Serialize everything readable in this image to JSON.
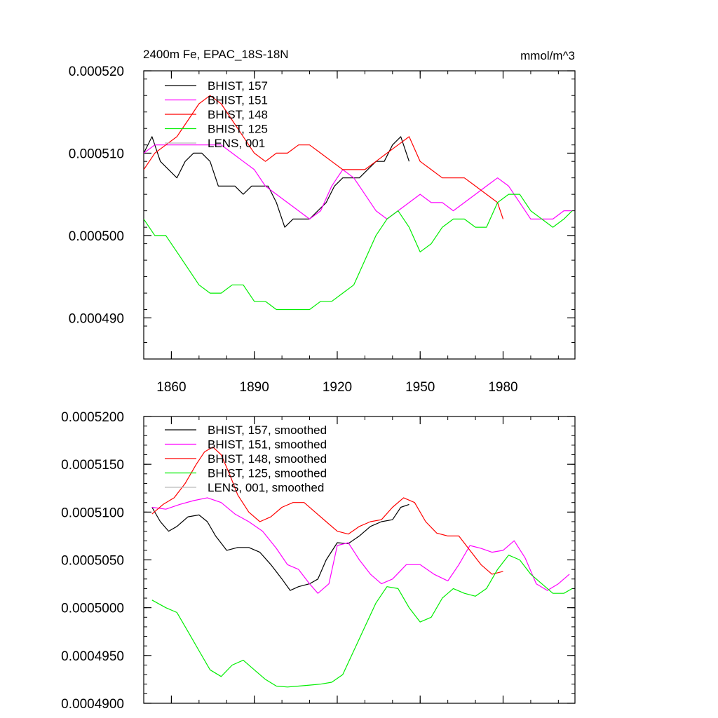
{
  "chart_data": [
    {
      "type": "line",
      "title": "2400m Fe, EPAC_18S-18N",
      "units": "mmol/m^3",
      "xlabel": "",
      "ylabel": "",
      "xlim": [
        1850,
        2006
      ],
      "ylim": [
        0.000485,
        0.00052
      ],
      "xticks": [
        1860,
        1890,
        1920,
        1950,
        1980
      ],
      "xtick_labels": [
        "1860",
        "1890",
        "1920",
        "1950",
        "1980"
      ],
      "yticks": [
        0.00049,
        0.0005,
        0.00051,
        0.00052
      ],
      "ytick_labels": [
        "0.000490",
        "0.000500",
        "0.000510",
        "0.000520"
      ],
      "legend_position": "top-left",
      "series": [
        {
          "name": "BHIST, 157",
          "color": "#000000",
          "x": [
            1850,
            1853,
            1856,
            1859,
            1862,
            1865,
            1868,
            1871,
            1874,
            1877,
            1880,
            1883,
            1886,
            1889,
            1892,
            1895,
            1898,
            1901,
            1904,
            1907,
            1910,
            1913,
            1916,
            1919,
            1922,
            1925,
            1928,
            1931,
            1934,
            1937,
            1940,
            1943,
            1946
          ],
          "y": [
            0.00051,
            0.000512,
            0.000509,
            0.000508,
            0.000507,
            0.000509,
            0.00051,
            0.00051,
            0.000509,
            0.000506,
            0.000506,
            0.000506,
            0.000505,
            0.000506,
            0.000506,
            0.000506,
            0.000504,
            0.000501,
            0.000502,
            0.000502,
            0.000502,
            0.000503,
            0.000504,
            0.000506,
            0.000507,
            0.000507,
            0.000507,
            0.000508,
            0.000509,
            0.000509,
            0.000511,
            0.000512,
            0.000509
          ]
        },
        {
          "name": "BHIST, 151",
          "color": "#ff00ff",
          "x": [
            1850,
            1854,
            1858,
            1862,
            1866,
            1870,
            1874,
            1878,
            1882,
            1886,
            1890,
            1894,
            1898,
            1902,
            1906,
            1910,
            1914,
            1918,
            1922,
            1926,
            1930,
            1934,
            1938,
            1942,
            1946,
            1950,
            1954,
            1958,
            1962,
            1966,
            1970,
            1974,
            1978,
            1982,
            1986,
            1990,
            1994,
            1998,
            2002,
            2005
          ],
          "y": [
            0.00051,
            0.000511,
            0.000511,
            0.000511,
            0.000511,
            0.000511,
            0.000511,
            0.000511,
            0.00051,
            0.000509,
            0.000508,
            0.000506,
            0.000505,
            0.000504,
            0.000503,
            0.000502,
            0.000503,
            0.000506,
            0.000508,
            0.000507,
            0.000505,
            0.000503,
            0.000502,
            0.000503,
            0.000504,
            0.000505,
            0.000504,
            0.000504,
            0.000503,
            0.000504,
            0.000505,
            0.000506,
            0.000507,
            0.000506,
            0.000504,
            0.000502,
            0.000502,
            0.000502,
            0.000503,
            0.000503
          ]
        },
        {
          "name": "BHIST, 148",
          "color": "#ff0000",
          "x": [
            1850,
            1854,
            1858,
            1862,
            1866,
            1870,
            1874,
            1878,
            1882,
            1886,
            1890,
            1894,
            1898,
            1902,
            1906,
            1910,
            1914,
            1918,
            1922,
            1926,
            1930,
            1934,
            1938,
            1942,
            1946,
            1950,
            1954,
            1958,
            1962,
            1966,
            1970,
            1974,
            1978,
            1980
          ],
          "y": [
            0.000508,
            0.00051,
            0.000511,
            0.000512,
            0.000514,
            0.000516,
            0.000517,
            0.000516,
            0.000514,
            0.000512,
            0.00051,
            0.000509,
            0.00051,
            0.00051,
            0.000511,
            0.000511,
            0.00051,
            0.000509,
            0.000508,
            0.000508,
            0.000508,
            0.000509,
            0.00051,
            0.000511,
            0.000512,
            0.000509,
            0.000508,
            0.000507,
            0.000507,
            0.000507,
            0.000506,
            0.000505,
            0.000504,
            0.000502
          ]
        },
        {
          "name": "BHIST, 125",
          "color": "#00ee00",
          "x": [
            1850,
            1854,
            1858,
            1862,
            1866,
            1870,
            1874,
            1878,
            1882,
            1886,
            1890,
            1894,
            1898,
            1902,
            1906,
            1910,
            1914,
            1918,
            1922,
            1926,
            1930,
            1934,
            1938,
            1942,
            1946,
            1950,
            1954,
            1958,
            1962,
            1966,
            1970,
            1974,
            1978,
            1982,
            1986,
            1990,
            1994,
            1998,
            2002,
            2005
          ],
          "y": [
            0.000502,
            0.0005,
            0.0005,
            0.000498,
            0.000496,
            0.000494,
            0.000493,
            0.000493,
            0.000494,
            0.000494,
            0.000492,
            0.000492,
            0.000491,
            0.000491,
            0.000491,
            0.000491,
            0.000492,
            0.000492,
            0.000493,
            0.000494,
            0.000497,
            0.0005,
            0.000502,
            0.000503,
            0.000501,
            0.000498,
            0.000499,
            0.000501,
            0.000502,
            0.000502,
            0.000501,
            0.000501,
            0.000504,
            0.000505,
            0.000505,
            0.000503,
            0.000502,
            0.000501,
            0.000502,
            0.000503
          ]
        },
        {
          "name": "LENS, 001",
          "color": "#bbbbbb",
          "x": [],
          "y": []
        }
      ]
    },
    {
      "type": "line",
      "title": "",
      "xlabel": "",
      "ylabel": "",
      "xlim": [
        1850,
        2006
      ],
      "ylim": [
        0.00049,
        0.00052
      ],
      "xticks": [
        1860,
        1890,
        1920,
        1950,
        1980
      ],
      "yticks": [
        0.00049,
        0.000495,
        0.0005,
        0.000505,
        0.00051,
        0.000515,
        0.00052
      ],
      "ytick_labels": [
        "0.0004900",
        "0.0004950",
        "0.0005000",
        "0.0005050",
        "0.0005100",
        "0.0005150",
        "0.0005200"
      ],
      "legend_position": "top-left",
      "series": [
        {
          "name": "BHIST, 157, smoothed",
          "color": "#000000",
          "x": [
            1853,
            1856,
            1859,
            1862,
            1866,
            1870,
            1873,
            1876,
            1880,
            1884,
            1888,
            1892,
            1896,
            1900,
            1903,
            1906,
            1910,
            1913,
            1916,
            1920,
            1924,
            1928,
            1932,
            1936,
            1940,
            1943,
            1946
          ],
          "y": [
            0.0005105,
            0.000509,
            0.000508,
            0.0005085,
            0.0005095,
            0.0005097,
            0.000509,
            0.0005075,
            0.000506,
            0.0005063,
            0.0005063,
            0.0005058,
            0.0005045,
            0.000503,
            0.0005018,
            0.0005022,
            0.0005025,
            0.000503,
            0.000505,
            0.0005068,
            0.0005067,
            0.0005075,
            0.0005085,
            0.000509,
            0.0005092,
            0.0005105,
            0.0005108
          ]
        },
        {
          "name": "BHIST, 151, smoothed",
          "color": "#ff00ff",
          "x": [
            1853,
            1858,
            1863,
            1868,
            1873,
            1878,
            1883,
            1888,
            1893,
            1898,
            1902,
            1906,
            1910,
            1913,
            1917,
            1920,
            1924,
            1928,
            1932,
            1936,
            1940,
            1945,
            1950,
            1955,
            1960,
            1964,
            1968,
            1972,
            1976,
            1980,
            1984,
            1988,
            1992,
            1996,
            2000,
            2004
          ],
          "y": [
            0.0005105,
            0.0005103,
            0.0005108,
            0.0005112,
            0.0005115,
            0.000511,
            0.0005098,
            0.000509,
            0.000508,
            0.0005062,
            0.0005045,
            0.000504,
            0.0005025,
            0.0005015,
            0.0005025,
            0.0005065,
            0.0005068,
            0.000505,
            0.0005035,
            0.0005025,
            0.000503,
            0.0005045,
            0.0005045,
            0.0005035,
            0.0005028,
            0.0005045,
            0.0005065,
            0.0005062,
            0.0005058,
            0.000506,
            0.000507,
            0.0005052,
            0.0005025,
            0.0005018,
            0.0005025,
            0.0005035
          ]
        },
        {
          "name": "BHIST, 148, smoothed",
          "color": "#ff0000",
          "x": [
            1853,
            1857,
            1861,
            1865,
            1869,
            1872,
            1875,
            1878,
            1881,
            1884,
            1888,
            1892,
            1896,
            1900,
            1904,
            1908,
            1912,
            1916,
            1920,
            1924,
            1928,
            1932,
            1936,
            1940,
            1944,
            1948,
            1952,
            1956,
            1960,
            1964,
            1968,
            1972,
            1976,
            1980
          ],
          "y": [
            0.0005098,
            0.0005108,
            0.0005115,
            0.000513,
            0.000515,
            0.0005163,
            0.0005168,
            0.000516,
            0.000514,
            0.0005118,
            0.00051,
            0.000509,
            0.0005095,
            0.0005105,
            0.000511,
            0.000511,
            0.00051,
            0.000509,
            0.000508,
            0.0005077,
            0.0005085,
            0.000509,
            0.0005092,
            0.0005105,
            0.0005115,
            0.000511,
            0.000509,
            0.0005078,
            0.0005075,
            0.0005075,
            0.000506,
            0.0005045,
            0.0005035,
            0.0005038
          ]
        },
        {
          "name": "BHIST, 125, smoothed",
          "color": "#00ee00",
          "x": [
            1853,
            1858,
            1862,
            1866,
            1870,
            1874,
            1878,
            1882,
            1886,
            1890,
            1894,
            1898,
            1902,
            1906,
            1910,
            1914,
            1918,
            1922,
            1926,
            1930,
            1934,
            1938,
            1942,
            1946,
            1950,
            1954,
            1958,
            1962,
            1966,
            1970,
            1974,
            1978,
            1982,
            1986,
            1990,
            1994,
            1998,
            2002,
            2005
          ],
          "y": [
            0.0005008,
            0.0005,
            0.0004995,
            0.0004975,
            0.0004955,
            0.0004935,
            0.0004928,
            0.000494,
            0.0004945,
            0.0004935,
            0.0004925,
            0.0004918,
            0.0004917,
            0.0004918,
            0.0004919,
            0.000492,
            0.0004922,
            0.000493,
            0.0004955,
            0.000498,
            0.0005005,
            0.0005022,
            0.000502,
            0.0005,
            0.0004985,
            0.000499,
            0.000501,
            0.000502,
            0.0005015,
            0.0005012,
            0.000502,
            0.000504,
            0.0005055,
            0.000505,
            0.0005035,
            0.0005025,
            0.0005015,
            0.0005015,
            0.000502
          ]
        },
        {
          "name": "LENS, 001, smoothed",
          "color": "#bbbbbb",
          "x": [],
          "y": []
        }
      ]
    }
  ]
}
